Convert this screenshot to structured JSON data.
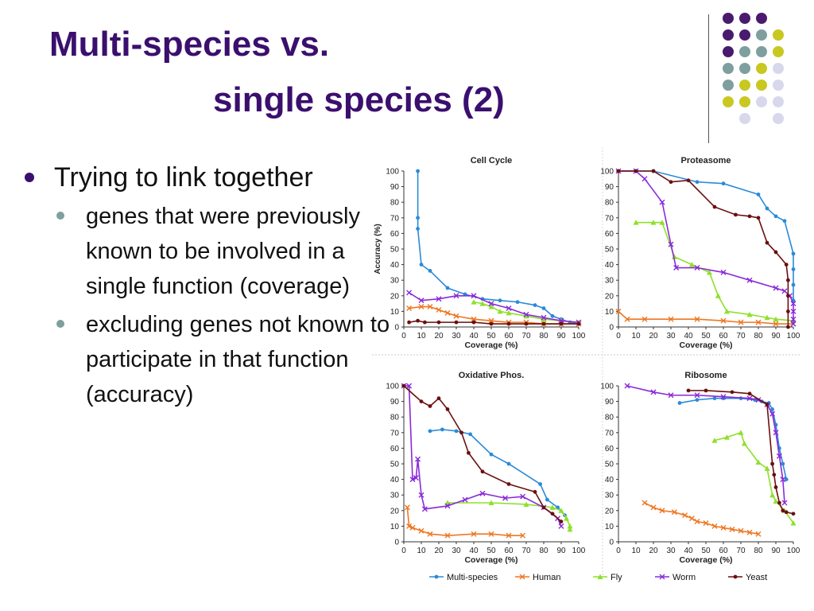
{
  "slide": {
    "title_line1": "Multi-species vs.",
    "title_line2": "single species (2)",
    "bullet": "Trying to link together",
    "sub_bullets": [
      "genes that were previously known to be involved in a single function (coverage)",
      "excluding genes not known to participate in that function (accuracy)"
    ],
    "title_color": "#3b0f6e",
    "decor_dot_colors": [
      "#4a1a6e",
      "#7f9f9f",
      "#c8c820",
      "#d8d8ec"
    ]
  },
  "chart_data": [
    {
      "type": "line",
      "title": "Cell Cycle",
      "xlabel": "Coverage (%)",
      "ylabel": "Accuracy (%)",
      "xlim": [
        0,
        100
      ],
      "ylim": [
        0,
        100
      ],
      "xticks": [
        0,
        10,
        20,
        30,
        40,
        50,
        60,
        70,
        80,
        90,
        100
      ],
      "yticks": [
        0,
        10,
        20,
        30,
        40,
        50,
        60,
        70,
        80,
        90,
        100
      ],
      "series": [
        {
          "name": "Multi-species",
          "color": "#2a8ad8",
          "x": [
            8,
            8,
            8,
            10,
            15,
            25,
            35,
            45,
            55,
            65,
            75,
            80,
            85,
            90,
            95,
            100
          ],
          "y": [
            100,
            70,
            63,
            40,
            36,
            25,
            21,
            18,
            17,
            16,
            14,
            12,
            7,
            5,
            3,
            2
          ]
        },
        {
          "name": "Human",
          "color": "#ee7722",
          "x": [
            3,
            10,
            15,
            20,
            25,
            30,
            40,
            50,
            60,
            70,
            80,
            90,
            100
          ],
          "y": [
            12,
            13,
            13,
            11,
            9,
            7,
            5,
            4,
            3,
            3,
            2,
            2,
            2
          ]
        },
        {
          "name": "Fly",
          "color": "#8ee02a",
          "x": [
            40,
            45,
            50,
            55,
            60,
            70,
            80,
            90,
            100
          ],
          "y": [
            16,
            15,
            13,
            10,
            9,
            7,
            5,
            4,
            3
          ]
        },
        {
          "name": "Worm",
          "color": "#8a2ad8",
          "x": [
            3,
            10,
            20,
            30,
            40,
            50,
            60,
            70,
            80,
            90,
            100
          ],
          "y": [
            22,
            17,
            18,
            20,
            20,
            15,
            12,
            8,
            6,
            4,
            3
          ]
        },
        {
          "name": "Yeast",
          "color": "#6b0f0f",
          "x": [
            3,
            8,
            12,
            20,
            30,
            40,
            50,
            60,
            70,
            80,
            90,
            100
          ],
          "y": [
            3,
            4,
            3,
            3,
            3,
            3,
            2,
            2,
            2,
            2,
            2,
            2
          ]
        }
      ]
    },
    {
      "type": "line",
      "title": "Proteasome",
      "xlabel": "Coverage (%)",
      "ylabel": "",
      "xlim": [
        0,
        100
      ],
      "ylim": [
        0,
        100
      ],
      "xticks": [
        0,
        10,
        20,
        30,
        40,
        50,
        60,
        70,
        80,
        90,
        100
      ],
      "yticks": [
        0,
        10,
        20,
        30,
        40,
        50,
        60,
        70,
        80,
        90,
        100
      ],
      "series": [
        {
          "name": "Multi-species",
          "color": "#2a8ad8",
          "x": [
            0,
            10,
            20,
            45,
            60,
            80,
            85,
            90,
            95,
            100,
            100,
            100,
            100
          ],
          "y": [
            100,
            100,
            100,
            93,
            92,
            85,
            76,
            71,
            68,
            47,
            37,
            27,
            17
          ]
        },
        {
          "name": "Human",
          "color": "#ee7722",
          "x": [
            0,
            5,
            15,
            30,
            45,
            60,
            70,
            80,
            90,
            100
          ],
          "y": [
            10,
            5,
            5,
            5,
            5,
            4,
            3,
            3,
            2,
            2
          ]
        },
        {
          "name": "Fly",
          "color": "#8ee02a",
          "x": [
            10,
            20,
            25,
            32,
            42,
            52,
            57,
            62,
            75,
            85,
            90,
            100
          ],
          "y": [
            67,
            67,
            67,
            45,
            40,
            35,
            20,
            10,
            8,
            6,
            5,
            4
          ]
        },
        {
          "name": "Worm",
          "color": "#8a2ad8",
          "x": [
            0,
            10,
            15,
            25,
            30,
            33,
            45,
            60,
            75,
            90,
            95,
            98,
            100,
            100,
            100,
            100
          ],
          "y": [
            100,
            100,
            95,
            80,
            53,
            38,
            38,
            35,
            30,
            25,
            23,
            20,
            15,
            10,
            5,
            2
          ]
        },
        {
          "name": "Yeast",
          "color": "#6b0f0f",
          "x": [
            0,
            10,
            20,
            30,
            40,
            55,
            67,
            75,
            80,
            85,
            90,
            96,
            97,
            97,
            97,
            97
          ],
          "y": [
            100,
            100,
            100,
            93,
            94,
            77,
            72,
            71,
            70,
            54,
            48,
            40,
            30,
            20,
            10,
            0
          ]
        }
      ]
    },
    {
      "type": "line",
      "title": "Oxidative Phos.",
      "xlabel": "Coverage (%)",
      "ylabel": "",
      "xlim": [
        0,
        100
      ],
      "ylim": [
        0,
        100
      ],
      "xticks": [
        0,
        10,
        20,
        30,
        40,
        50,
        60,
        70,
        80,
        90,
        100
      ],
      "yticks": [
        0,
        10,
        20,
        30,
        40,
        50,
        60,
        70,
        80,
        90,
        100
      ],
      "series": [
        {
          "name": "Multi-species",
          "color": "#2a8ad8",
          "x": [
            15,
            22,
            30,
            38,
            50,
            60,
            78,
            82,
            88,
            92
          ],
          "y": [
            71,
            72,
            71,
            69,
            56,
            50,
            37,
            27,
            22,
            17
          ]
        },
        {
          "name": "Human",
          "color": "#ee7722",
          "x": [
            2,
            3,
            5,
            10,
            15,
            25,
            40,
            50,
            60,
            68
          ],
          "y": [
            22,
            10,
            9,
            7,
            5,
            4,
            5,
            5,
            4,
            4
          ]
        },
        {
          "name": "Fly",
          "color": "#8ee02a",
          "x": [
            25,
            50,
            70,
            85,
            90,
            93,
            95,
            95
          ],
          "y": [
            25,
            25,
            24,
            22,
            20,
            15,
            10,
            8
          ]
        },
        {
          "name": "Worm",
          "color": "#8a2ad8",
          "x": [
            0,
            3,
            5,
            7,
            8,
            10,
            12,
            25,
            35,
            45,
            58,
            68,
            80,
            88,
            90
          ],
          "y": [
            100,
            100,
            40,
            41,
            53,
            30,
            21,
            23,
            27,
            31,
            28,
            29,
            22,
            15,
            10
          ]
        },
        {
          "name": "Yeast",
          "color": "#6b0f0f",
          "x": [
            0,
            10,
            15,
            20,
            25,
            33,
            37,
            45,
            60,
            75,
            80,
            85,
            90
          ],
          "y": [
            100,
            90,
            87,
            92,
            85,
            70,
            57,
            45,
            37,
            32,
            22,
            18,
            13
          ]
        }
      ]
    },
    {
      "type": "line",
      "title": "Ribosome",
      "xlabel": "Coverage (%)",
      "ylabel": "",
      "xlim": [
        0,
        100
      ],
      "ylim": [
        0,
        100
      ],
      "xticks": [
        0,
        10,
        20,
        30,
        40,
        50,
        60,
        70,
        80,
        90,
        100
      ],
      "yticks": [
        0,
        10,
        20,
        30,
        40,
        50,
        60,
        70,
        80,
        90,
        100
      ],
      "series": [
        {
          "name": "Multi-species",
          "color": "#2a8ad8",
          "x": [
            35,
            45,
            55,
            60,
            70,
            78,
            82,
            86,
            88,
            90,
            92,
            94,
            96
          ],
          "y": [
            89,
            91,
            92,
            92,
            92,
            91,
            90,
            89,
            85,
            75,
            60,
            50,
            40
          ]
        },
        {
          "name": "Human",
          "color": "#ee7722",
          "x": [
            15,
            20,
            25,
            32,
            38,
            42,
            45,
            50,
            55,
            60,
            65,
            70,
            75,
            80
          ],
          "y": [
            25,
            22,
            20,
            19,
            17,
            15,
            13,
            12,
            10,
            9,
            8,
            7,
            6,
            5
          ]
        },
        {
          "name": "Fly",
          "color": "#8ee02a",
          "x": [
            55,
            62,
            70,
            72,
            80,
            85,
            88,
            90,
            95,
            100
          ],
          "y": [
            65,
            67,
            70,
            63,
            51,
            47,
            30,
            26,
            20,
            12
          ]
        },
        {
          "name": "Worm",
          "color": "#8a2ad8",
          "x": [
            5,
            20,
            30,
            45,
            60,
            75,
            80,
            85,
            88,
            90,
            92,
            94,
            95
          ],
          "y": [
            100,
            96,
            94,
            94,
            93,
            92,
            91,
            88,
            82,
            70,
            55,
            40,
            25
          ]
        },
        {
          "name": "Yeast",
          "color": "#6b0f0f",
          "x": [
            40,
            50,
            65,
            75,
            85,
            88,
            89,
            90,
            92,
            94,
            96,
            100
          ],
          "y": [
            97,
            97,
            96,
            95,
            88,
            50,
            43,
            35,
            25,
            20,
            19,
            18
          ]
        }
      ]
    }
  ],
  "legend": {
    "position": "bottom",
    "entries": [
      {
        "name": "Multi-species",
        "color": "#2a8ad8",
        "marker": "dot"
      },
      {
        "name": "Human",
        "color": "#ee7722",
        "marker": "x"
      },
      {
        "name": "Fly",
        "color": "#8ee02a",
        "marker": "tri"
      },
      {
        "name": "Worm",
        "color": "#8a2ad8",
        "marker": "x"
      },
      {
        "name": "Yeast",
        "color": "#6b0f0f",
        "marker": "dot"
      }
    ]
  }
}
